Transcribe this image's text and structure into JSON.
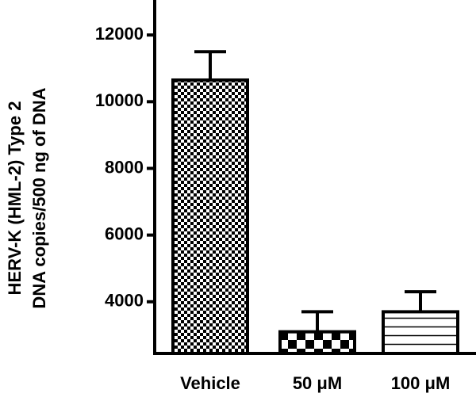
{
  "chart_data": {
    "type": "bar",
    "ylabel": [
      "HERV-K (HML-2) Type 2",
      "DNA copies/500 ng of DNA"
    ],
    "categories": [
      "Vehicle",
      "50 μM",
      "100 μM"
    ],
    "values": [
      10650,
      3100,
      3700
    ],
    "errors": [
      850,
      600,
      600
    ],
    "color": "#000000",
    "ylim": [
      2450,
      13050
    ],
    "yticks": [
      4000,
      6000,
      8000,
      10000,
      12000
    ]
  }
}
